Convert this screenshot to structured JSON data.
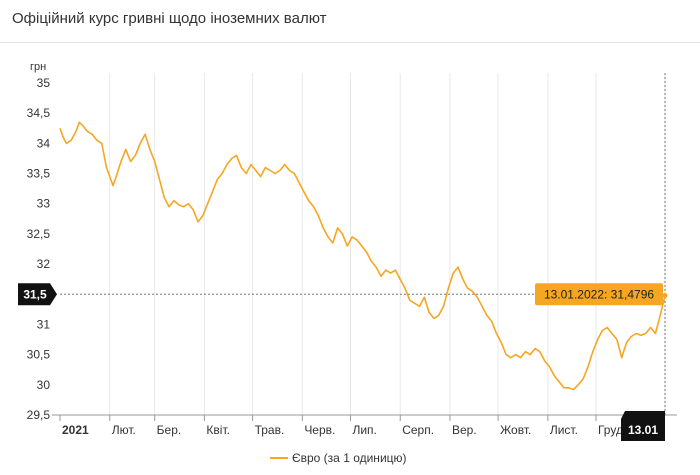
{
  "header": {
    "title": "Офіційний курс гривні щодо іноземних валют"
  },
  "chart_data": {
    "type": "line",
    "title": "Офіційний курс гривні щодо іноземних валют",
    "ylabel": "грн",
    "xlabel": "",
    "ylim": [
      29.5,
      35
    ],
    "y_ticks": [
      "35",
      "34,5",
      "34",
      "33,5",
      "33",
      "32,5",
      "32",
      "31,5",
      "31",
      "30,5",
      "30",
      "29,5"
    ],
    "y_tick_values": [
      35,
      34.5,
      34,
      33.5,
      33,
      32.5,
      32,
      31.5,
      31,
      30.5,
      30,
      29.5
    ],
    "x_range": [
      "2021-01-01",
      "2022-01-13"
    ],
    "x_ticks": [
      {
        "label": "2021",
        "date": "2021-01-01",
        "bold": true
      },
      {
        "label": "Лют.",
        "date": "2021-02-01"
      },
      {
        "label": "Бер.",
        "date": "2021-03-01"
      },
      {
        "label": "Квіт.",
        "date": "2021-04-01"
      },
      {
        "label": "Трав.",
        "date": "2021-05-01"
      },
      {
        "label": "Черв.",
        "date": "2021-06-01"
      },
      {
        "label": "Лип.",
        "date": "2021-07-01"
      },
      {
        "label": "Серп.",
        "date": "2021-08-01"
      },
      {
        "label": "Вер.",
        "date": "2021-09-01"
      },
      {
        "label": "Жовт.",
        "date": "2021-10-01"
      },
      {
        "label": "Лист.",
        "date": "2021-11-01"
      },
      {
        "label": "Груд.",
        "date": "2021-12-01"
      }
    ],
    "crosshair": {
      "y_label": "31,5",
      "y_value": 31.5,
      "x_label": "13.01"
    },
    "tooltip": {
      "text": "13.01.2022: 31,4796"
    },
    "legend": {
      "position": "bottom-center"
    },
    "grid": {
      "horizontal": false,
      "vertical": true
    },
    "colors": {
      "line": "#f5a623",
      "badge": "#111111",
      "tooltip_bg": "#f5a623"
    },
    "series": [
      {
        "name": "Євро (за 1 одиницю)",
        "points": [
          [
            "2021-01-01",
            34.25
          ],
          [
            "2021-01-03",
            34.1
          ],
          [
            "2021-01-05",
            34.0
          ],
          [
            "2021-01-08",
            34.05
          ],
          [
            "2021-01-11",
            34.2
          ],
          [
            "2021-01-13",
            34.35
          ],
          [
            "2021-01-15",
            34.3
          ],
          [
            "2021-01-18",
            34.2
          ],
          [
            "2021-01-21",
            34.15
          ],
          [
            "2021-01-24",
            34.05
          ],
          [
            "2021-01-27",
            34.0
          ],
          [
            "2021-01-30",
            33.6
          ],
          [
            "2021-02-03",
            33.3
          ],
          [
            "2021-02-05",
            33.45
          ],
          [
            "2021-02-08",
            33.7
          ],
          [
            "2021-02-11",
            33.9
          ],
          [
            "2021-02-14",
            33.7
          ],
          [
            "2021-02-17",
            33.8
          ],
          [
            "2021-02-20",
            34.0
          ],
          [
            "2021-02-23",
            34.15
          ],
          [
            "2021-02-26",
            33.9
          ],
          [
            "2021-03-01",
            33.7
          ],
          [
            "2021-03-04",
            33.4
          ],
          [
            "2021-03-07",
            33.1
          ],
          [
            "2021-03-10",
            32.95
          ],
          [
            "2021-03-13",
            33.05
          ],
          [
            "2021-03-16",
            32.98
          ],
          [
            "2021-03-19",
            32.95
          ],
          [
            "2021-03-22",
            33.0
          ],
          [
            "2021-03-25",
            32.9
          ],
          [
            "2021-03-28",
            32.7
          ],
          [
            "2021-03-31",
            32.8
          ],
          [
            "2021-04-03",
            33.0
          ],
          [
            "2021-04-06",
            33.2
          ],
          [
            "2021-04-09",
            33.4
          ],
          [
            "2021-04-12",
            33.5
          ],
          [
            "2021-04-15",
            33.65
          ],
          [
            "2021-04-18",
            33.75
          ],
          [
            "2021-04-21",
            33.8
          ],
          [
            "2021-04-24",
            33.6
          ],
          [
            "2021-04-27",
            33.5
          ],
          [
            "2021-04-30",
            33.65
          ],
          [
            "2021-05-03",
            33.55
          ],
          [
            "2021-05-06",
            33.45
          ],
          [
            "2021-05-09",
            33.6
          ],
          [
            "2021-05-12",
            33.55
          ],
          [
            "2021-05-15",
            33.5
          ],
          [
            "2021-05-18",
            33.55
          ],
          [
            "2021-05-21",
            33.65
          ],
          [
            "2021-05-24",
            33.55
          ],
          [
            "2021-05-27",
            33.5
          ],
          [
            "2021-05-30",
            33.35
          ],
          [
            "2021-06-02",
            33.2
          ],
          [
            "2021-06-05",
            33.05
          ],
          [
            "2021-06-08",
            32.95
          ],
          [
            "2021-06-11",
            32.8
          ],
          [
            "2021-06-14",
            32.6
          ],
          [
            "2021-06-17",
            32.45
          ],
          [
            "2021-06-20",
            32.35
          ],
          [
            "2021-06-23",
            32.6
          ],
          [
            "2021-06-26",
            32.5
          ],
          [
            "2021-06-29",
            32.3
          ],
          [
            "2021-07-02",
            32.45
          ],
          [
            "2021-07-05",
            32.4
          ],
          [
            "2021-07-08",
            32.3
          ],
          [
            "2021-07-11",
            32.2
          ],
          [
            "2021-07-14",
            32.05
          ],
          [
            "2021-07-17",
            31.95
          ],
          [
            "2021-07-20",
            31.8
          ],
          [
            "2021-07-23",
            31.9
          ],
          [
            "2021-07-26",
            31.85
          ],
          [
            "2021-07-29",
            31.9
          ],
          [
            "2021-08-01",
            31.75
          ],
          [
            "2021-08-04",
            31.6
          ],
          [
            "2021-08-07",
            31.4
          ],
          [
            "2021-08-10",
            31.35
          ],
          [
            "2021-08-13",
            31.3
          ],
          [
            "2021-08-16",
            31.45
          ],
          [
            "2021-08-19",
            31.2
          ],
          [
            "2021-08-22",
            31.1
          ],
          [
            "2021-08-25",
            31.15
          ],
          [
            "2021-08-28",
            31.3
          ],
          [
            "2021-08-31",
            31.6
          ],
          [
            "2021-09-03",
            31.85
          ],
          [
            "2021-09-06",
            31.95
          ],
          [
            "2021-09-09",
            31.75
          ],
          [
            "2021-09-12",
            31.6
          ],
          [
            "2021-09-15",
            31.55
          ],
          [
            "2021-09-18",
            31.45
          ],
          [
            "2021-09-21",
            31.3
          ],
          [
            "2021-09-24",
            31.15
          ],
          [
            "2021-09-27",
            31.05
          ],
          [
            "2021-09-30",
            30.85
          ],
          [
            "2021-10-03",
            30.7
          ],
          [
            "2021-10-06",
            30.5
          ],
          [
            "2021-10-09",
            30.45
          ],
          [
            "2021-10-12",
            30.5
          ],
          [
            "2021-10-15",
            30.45
          ],
          [
            "2021-10-18",
            30.55
          ],
          [
            "2021-10-21",
            30.5
          ],
          [
            "2021-10-24",
            30.6
          ],
          [
            "2021-10-27",
            30.55
          ],
          [
            "2021-10-30",
            30.4
          ],
          [
            "2021-11-02",
            30.3
          ],
          [
            "2021-11-05",
            30.15
          ],
          [
            "2021-11-08",
            30.05
          ],
          [
            "2021-11-11",
            29.95
          ],
          [
            "2021-11-14",
            29.95
          ],
          [
            "2021-11-17",
            29.92
          ],
          [
            "2021-11-20",
            30.0
          ],
          [
            "2021-11-23",
            30.1
          ],
          [
            "2021-11-26",
            30.3
          ],
          [
            "2021-11-29",
            30.55
          ],
          [
            "2021-12-02",
            30.75
          ],
          [
            "2021-12-05",
            30.9
          ],
          [
            "2021-12-08",
            30.95
          ],
          [
            "2021-12-11",
            30.85
          ],
          [
            "2021-12-14",
            30.75
          ],
          [
            "2021-12-17",
            30.45
          ],
          [
            "2021-12-20",
            30.7
          ],
          [
            "2021-12-23",
            30.8
          ],
          [
            "2021-12-26",
            30.85
          ],
          [
            "2021-12-29",
            30.82
          ],
          [
            "2022-01-01",
            30.85
          ],
          [
            "2022-01-04",
            30.95
          ],
          [
            "2022-01-07",
            30.85
          ],
          [
            "2022-01-10",
            31.15
          ],
          [
            "2022-01-13",
            31.48
          ]
        ]
      }
    ]
  }
}
